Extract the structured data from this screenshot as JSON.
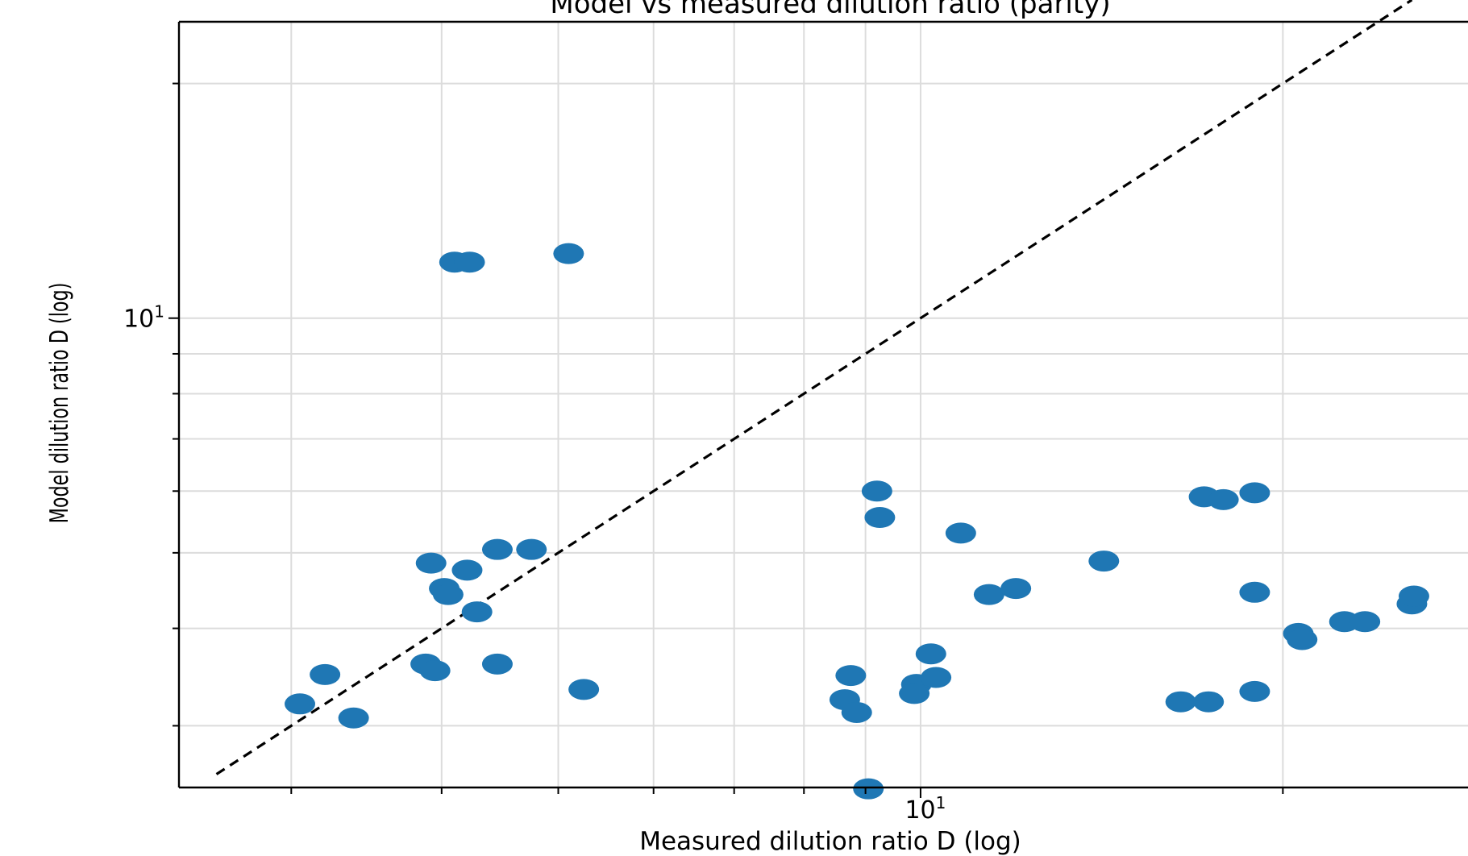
{
  "chart_data": {
    "type": "scatter",
    "title": "Model vs measured dilution ratio (parity)",
    "xlabel": "Measured dilution ratio D (log)",
    "ylabel": "Model dilution ratio D (log)",
    "x_scale": "log",
    "y_scale": "log",
    "xlim": [
      2.42,
      28.5
    ],
    "ylim": [
      2.5,
      24.0
    ],
    "x_tick_labels": [
      "10^1"
    ],
    "y_tick_labels": [
      "10^1"
    ],
    "grid": true,
    "marker_color": "#1f77b4",
    "parity_line": {
      "x": [
        2.6,
        25.6
      ],
      "y": [
        2.6,
        25.6
      ],
      "style": "dashed",
      "color": "#000000"
    },
    "points": [
      {
        "x": 4.1,
        "y": 11.8
      },
      {
        "x": 4.22,
        "y": 11.8
      },
      {
        "x": 5.1,
        "y": 12.1
      },
      {
        "x": 3.92,
        "y": 4.85
      },
      {
        "x": 4.2,
        "y": 4.75
      },
      {
        "x": 4.45,
        "y": 5.05
      },
      {
        "x": 4.75,
        "y": 5.05
      },
      {
        "x": 4.02,
        "y": 4.5
      },
      {
        "x": 4.05,
        "y": 4.42
      },
      {
        "x": 4.28,
        "y": 4.2
      },
      {
        "x": 3.88,
        "y": 3.6
      },
      {
        "x": 3.95,
        "y": 3.53
      },
      {
        "x": 4.45,
        "y": 3.6
      },
      {
        "x": 3.2,
        "y": 3.49
      },
      {
        "x": 3.05,
        "y": 3.2
      },
      {
        "x": 3.38,
        "y": 3.07
      },
      {
        "x": 5.25,
        "y": 3.34
      },
      {
        "x": 9.2,
        "y": 6.0
      },
      {
        "x": 9.25,
        "y": 5.55
      },
      {
        "x": 8.75,
        "y": 3.48
      },
      {
        "x": 8.65,
        "y": 3.24
      },
      {
        "x": 8.85,
        "y": 3.12
      },
      {
        "x": 9.05,
        "y": 2.49
      },
      {
        "x": 9.92,
        "y": 3.39
      },
      {
        "x": 9.88,
        "y": 3.3
      },
      {
        "x": 10.2,
        "y": 3.71
      },
      {
        "x": 10.3,
        "y": 3.46
      },
      {
        "x": 10.8,
        "y": 5.3
      },
      {
        "x": 11.4,
        "y": 4.42
      },
      {
        "x": 12.0,
        "y": 4.5
      },
      {
        "x": 14.2,
        "y": 4.88
      },
      {
        "x": 17.2,
        "y": 5.9
      },
      {
        "x": 17.85,
        "y": 5.85
      },
      {
        "x": 18.95,
        "y": 5.97
      },
      {
        "x": 18.95,
        "y": 4.45
      },
      {
        "x": 16.45,
        "y": 3.22
      },
      {
        "x": 17.35,
        "y": 3.22
      },
      {
        "x": 18.95,
        "y": 3.32
      },
      {
        "x": 20.6,
        "y": 3.94
      },
      {
        "x": 20.75,
        "y": 3.87
      },
      {
        "x": 22.5,
        "y": 4.08
      },
      {
        "x": 23.4,
        "y": 4.08
      },
      {
        "x": 25.6,
        "y": 4.3
      },
      {
        "x": 25.7,
        "y": 4.4
      }
    ]
  }
}
